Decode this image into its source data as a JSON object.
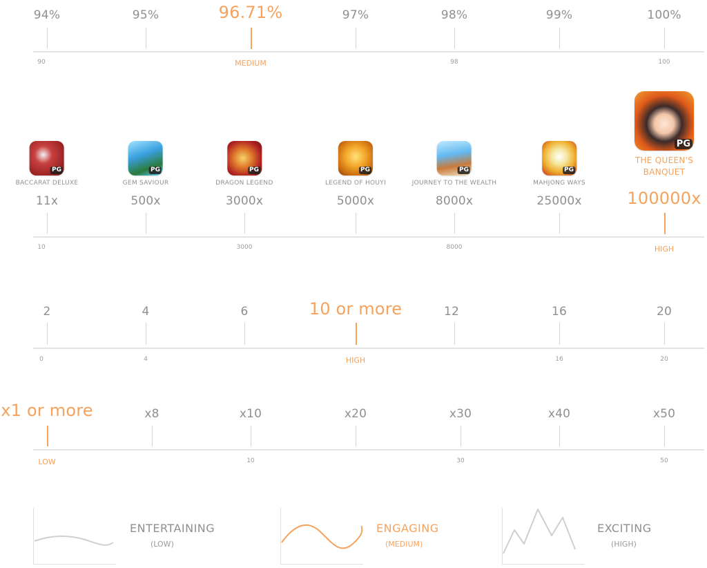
{
  "rtp": {
    "values": [
      "94%",
      "95%",
      "96.71%",
      "97%",
      "98%",
      "99%",
      "100%"
    ],
    "ticks": [
      "90",
      "MEDIUM",
      "98",
      "100"
    ]
  },
  "max_win": {
    "games": [
      {
        "name": "BACCARAT DELUXE",
        "icon": "baccarat-deluxe-icon",
        "value": "11x"
      },
      {
        "name": "GEM SAVIOUR",
        "icon": "gem-saviour-icon",
        "value": "500x"
      },
      {
        "name": "DRAGON LEGEND",
        "icon": "dragon-legend-icon",
        "value": "3000x"
      },
      {
        "name": "LEGEND OF HOUYI",
        "icon": "legend-of-houyi-icon",
        "value": "5000x"
      },
      {
        "name": "JOURNEY TO THE WEALTH",
        "icon": "journey-to-the-wealth-icon",
        "value": "8000x"
      },
      {
        "name": "MAHJONG WAYS",
        "icon": "mahjong-ways-icon",
        "value": "25000x"
      },
      {
        "name": "THE QUEEN'S BANQUET",
        "icon": "the-queens-banquet-icon",
        "value": "100000x"
      }
    ],
    "badge": "PG",
    "ticks": [
      "10",
      "3000",
      "8000",
      "HIGH"
    ]
  },
  "lines": {
    "values": [
      "2",
      "4",
      "6",
      "10 or more",
      "12",
      "16",
      "20"
    ],
    "ticks": [
      "0",
      "4",
      "HIGH",
      "16",
      "20"
    ]
  },
  "bet": {
    "values": [
      "x1 or more",
      "x8",
      "x10",
      "x20",
      "x30",
      "x40",
      "x50"
    ],
    "ticks": [
      "LOW",
      "10",
      "30",
      "50"
    ]
  },
  "volatility": [
    {
      "title": "ENTERTAINING",
      "sub": "(LOW)"
    },
    {
      "title": "ENGAGING",
      "sub": "(MEDIUM)"
    },
    {
      "title": "EXCITING",
      "sub": "(HIGH)"
    }
  ],
  "colors": {
    "accent": "#f5a25d",
    "muted": "#8f8f8f",
    "line": "#d4d4d4"
  }
}
